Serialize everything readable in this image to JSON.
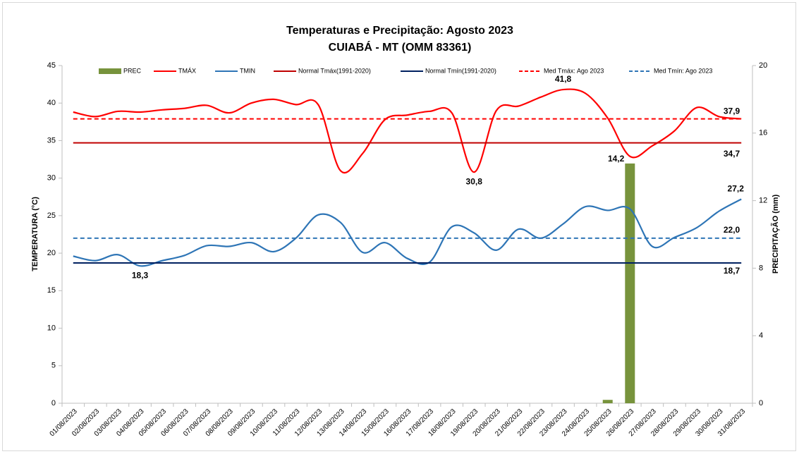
{
  "chart_data": {
    "type": "line",
    "title": "Temperaturas e Precipitação: Agosto 2023",
    "subtitle": "CUIABÁ - MT (OMM 83361)",
    "y_label": "TEMPERATURA  (°C)",
    "y2_label": "PRECIPITAÇÃO  (mm)",
    "categories": [
      "01/08/2023",
      "02/08/2023",
      "03/08/2023",
      "04/08/2023",
      "05/08/2023",
      "06/08/2023",
      "07/08/2023",
      "08/08/2023",
      "09/08/2023",
      "10/08/2023",
      "11/08/2023",
      "12/08/2023",
      "13/08/2023",
      "14/08/2023",
      "15/08/2023",
      "16/08/2023",
      "17/08/2023",
      "18/08/2023",
      "19/08/2023",
      "20/08/2023",
      "21/08/2023",
      "22/08/2023",
      "23/08/2023",
      "24/08/2023",
      "25/08/2023",
      "26/08/2023",
      "27/08/2023",
      "28/08/2023",
      "29/08/2023",
      "30/08/2023",
      "31/08/2023"
    ],
    "ylim": [
      0,
      45
    ],
    "yticks": [
      0,
      5,
      10,
      15,
      20,
      25,
      30,
      35,
      40,
      45
    ],
    "y2lim": [
      0,
      20
    ],
    "y2ticks": [
      0,
      4,
      8,
      12,
      16,
      20
    ],
    "series": [
      {
        "name": "PREC",
        "type": "bar",
        "axis": "y2",
        "color": "#77933c",
        "values": [
          0,
          0,
          0,
          0,
          0,
          0,
          0,
          0,
          0,
          0,
          0,
          0,
          0,
          0,
          0,
          0,
          0,
          0,
          0,
          0,
          0,
          0,
          0,
          0,
          0.2,
          14.2,
          0,
          0,
          0,
          0,
          0
        ],
        "value_labels": [
          null,
          null,
          null,
          null,
          null,
          null,
          null,
          null,
          null,
          null,
          null,
          null,
          null,
          null,
          null,
          null,
          null,
          null,
          null,
          null,
          null,
          null,
          null,
          null,
          null,
          "14,2",
          null,
          null,
          null,
          null,
          null
        ],
        "label_color": "#00b050"
      },
      {
        "name": "TMÁX",
        "type": "line",
        "color": "#ff0000",
        "values": [
          38.8,
          38.2,
          38.9,
          38.8,
          39.1,
          39.3,
          39.7,
          38.7,
          40.0,
          40.5,
          39.8,
          39.8,
          31.0,
          33.3,
          37.8,
          38.4,
          38.9,
          38.7,
          30.8,
          39.0,
          39.6,
          40.8,
          41.8,
          41.3,
          38.0,
          32.9,
          34.3,
          36.3,
          39.4,
          38.2,
          37.9
        ],
        "value_labels": [
          null,
          null,
          null,
          null,
          null,
          null,
          null,
          null,
          null,
          null,
          null,
          null,
          null,
          null,
          null,
          null,
          null,
          null,
          "30,8",
          null,
          null,
          null,
          "41,8",
          null,
          null,
          null,
          null,
          null,
          null,
          null,
          null
        ]
      },
      {
        "name": "TMIN",
        "type": "line",
        "color": "#2e75b6",
        "values": [
          19.6,
          19.0,
          19.8,
          18.3,
          19.0,
          19.7,
          21.0,
          20.9,
          21.4,
          20.2,
          22.0,
          25.1,
          24.1,
          20.1,
          21.4,
          19.3,
          18.8,
          23.5,
          22.7,
          20.4,
          23.2,
          22.0,
          23.9,
          26.2,
          25.7,
          25.9,
          20.9,
          22.1,
          23.4,
          25.6,
          27.2
        ],
        "value_labels": [
          null,
          null,
          null,
          "18,3",
          null,
          null,
          null,
          null,
          null,
          null,
          null,
          null,
          null,
          null,
          null,
          null,
          null,
          null,
          null,
          null,
          null,
          null,
          null,
          null,
          null,
          null,
          null,
          null,
          null,
          null,
          "27,2"
        ]
      },
      {
        "name": "Normal Tmáx(1991-2020)",
        "type": "hline",
        "color": "#c00000",
        "value": 34.7,
        "value_label": "34,7"
      },
      {
        "name": "Normal Tmín(1991-2020)",
        "type": "hline",
        "color": "#002060",
        "value": 18.7,
        "value_label": "18,7"
      },
      {
        "name": "Med Tmáx: Ago 2023",
        "type": "hline",
        "dashed": true,
        "color": "#ff0000",
        "value": 37.9,
        "value_label": "37,9"
      },
      {
        "name": "Med Tmín: Ago 2023",
        "type": "hline",
        "dashed": true,
        "color": "#2e75b6",
        "value": 22.0,
        "value_label": "22,0"
      }
    ]
  }
}
